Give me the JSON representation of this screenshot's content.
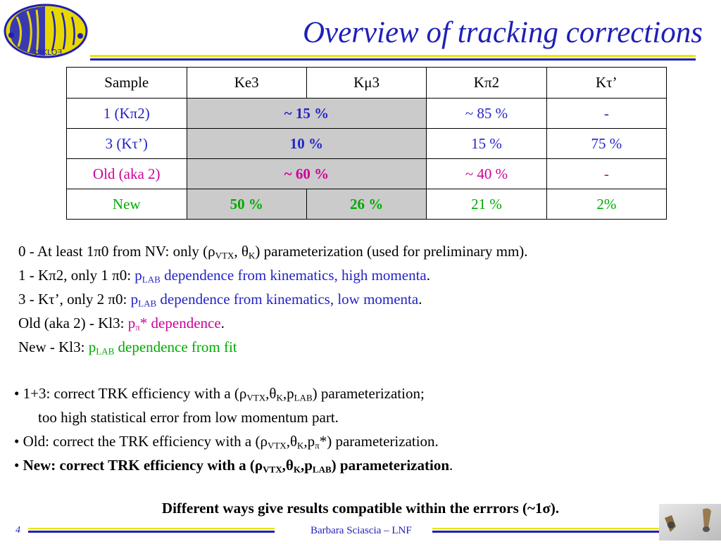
{
  "header": {
    "logo_icon": "kloe-logo-icon",
    "logo_text": "ȜᑫKLOƎ",
    "title": "Overview of tracking corrections"
  },
  "table": {
    "header": [
      "Sample",
      "Ke3",
      "Kμ3",
      "Kπ2",
      "Kτ’"
    ],
    "rows": [
      {
        "label": "1 (Kπ2)",
        "ke3_kmu3": "~ 15 %",
        "kpi2": "~ 85 %",
        "ktau": "-",
        "color": "#2323c8"
      },
      {
        "label": "3 (Kτ’)",
        "ke3_kmu3": "10 %",
        "kpi2": "15 %",
        "ktau": "75 %",
        "color": "#2323c8"
      },
      {
        "label": "Old (aka 2)",
        "ke3_kmu3": "~ 60 %",
        "kpi2": "~ 40 %",
        "ktau": "-",
        "color": "#cc0099"
      },
      {
        "label": "New",
        "ke3": "50 %",
        "kmu3": "26 %",
        "kpi2": "21 %",
        "ktau": "2%",
        "color": "#00aa00"
      }
    ]
  },
  "notes": {
    "n0_prefix": "0 - At least 1π0 from NV: only (ρ",
    "n0_sub1": "VTX",
    "n0_mid": ", θ",
    "n0_sub2": "K",
    "n0_suffix": ") parameterization (used for preliminary mm).",
    "n1_prefix": "1 - Kπ2, only 1 π0: ",
    "n1_p": "p",
    "n1_sub": "LAB",
    "n1_blue": " dependence from kinematics, high momenta",
    "n1_end": ".",
    "n3_prefix": "3 - Kτ’, only 2 π0: ",
    "n3_p": "p",
    "n3_sub": "LAB",
    "n3_blue": " dependence from kinematics, low momenta",
    "n3_end": ".",
    "old_prefix": "Old (aka 2) - Kl3: ",
    "old_p": "p",
    "old_sub": "π",
    "old_mag": "* dependence",
    "old_end": ".",
    "new_prefix": "New - Kl3: ",
    "new_p": "p",
    "new_sub": "LAB",
    "new_grn": " dependence from fit"
  },
  "bullets": {
    "b1_a": "• 1+3: correct TRK efficiency with a (ρ",
    "b1_s1": "VTX",
    "b1_b": ",θ",
    "b1_s2": "K",
    "b1_c": ",p",
    "b1_s3": "LAB",
    "b1_d": ") parameterization;",
    "b1_cont": "too high statistical error from low momentum part.",
    "b2_a": "• Old: correct the TRK efficiency with a (ρ",
    "b2_s1": "VTX",
    "b2_b": ",θ",
    "b2_s2": "K",
    "b2_c": ",p",
    "b2_s3": "π",
    "b2_d": "*) parameterization.",
    "b3_dot": "• ",
    "b3_a": "New: correct TRK efficiency with a (ρ",
    "b3_s1": "VTX",
    "b3_b": ",θ",
    "b3_s2": "K",
    "b3_c": ",p",
    "b3_s3": "LAB",
    "b3_d": ") parameterization",
    "b3_end": "."
  },
  "conclusion": "Different ways give results compatible within the errrors (~1σ).",
  "footer": {
    "page": "4",
    "author": "Barbara Sciascia – LNF",
    "corner_icon": "kloe-detector-icon"
  },
  "colors": {
    "title_blue": "#1f1fb8",
    "rule_yellow": "#e8e800",
    "blue_text": "#2323c8",
    "magenta_text": "#cc0099",
    "green_text": "#00aa00",
    "gray_cell": "#cbcbcb"
  }
}
